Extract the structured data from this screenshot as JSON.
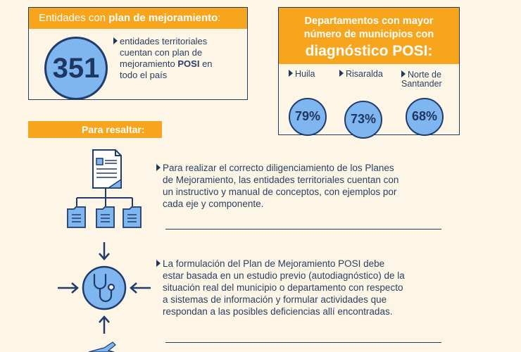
{
  "entidades": {
    "header_prefix": "Entidades con ",
    "header_bold": "plan de mejoramiento",
    "header_suffix": ":",
    "number": "351",
    "text_line1": "entidades territoriales",
    "text_line2": "cuentan con plan de",
    "text_line3_prefix": "mejoramiento ",
    "text_line3_bold": "POSI",
    "text_line3_suffix": " en",
    "text_line4": "todo el país"
  },
  "departamentos": {
    "header_line1": "Departamentos con mayor",
    "header_line2": "número de municipios con",
    "header_line3": "diagnóstico POSI:",
    "items": [
      {
        "name": "Huila",
        "percent": "79%"
      },
      {
        "name": "Risaralda",
        "percent": "73%"
      },
      {
        "name_line1": "Norte de",
        "name_line2": "Santander",
        "percent": "68%"
      }
    ]
  },
  "resaltar": {
    "label": "Para resaltar:",
    "para1": {
      "l1": "Para realizar el correcto diligenciamiento de los Planes",
      "l2": "de Mejoramiento, las entidades territoriales cuentan con",
      "l3": "un instructivo y manual de conceptos, con ejemplos por",
      "l4": "cada eje y componente."
    },
    "para2": {
      "l1": "La formulación del Plan de Mejoramiento POSI debe",
      "l2": "estar basada en un estudio previo (autodiagnóstico) de la",
      "l3": "situación real del municipio o departamento con respecto",
      "l4": "a sistemas de información y formular actividades que",
      "l5": "respondan a las posibles deficiencias allí encontradas."
    }
  },
  "colors": {
    "accent": "#f7a51c",
    "navy": "#213c6a",
    "light_blue": "#7fb6ef",
    "background": "#fdf6e6"
  },
  "icons": [
    "document-icon",
    "folder-icon",
    "stethoscope-icon",
    "arrow-icon",
    "triangle-bullet-icon"
  ]
}
